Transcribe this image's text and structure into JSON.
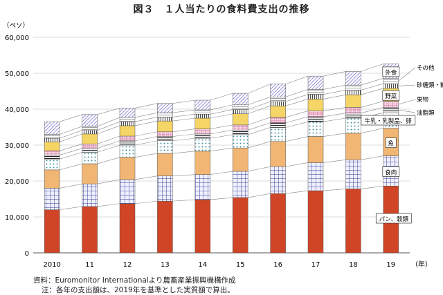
{
  "chart_data": {
    "type": "bar",
    "stacked": true,
    "title": "図３　１人当たりの食料費支出の推移",
    "unit_label": "（ペソ）",
    "x_unit_label": "（年）",
    "categories": [
      "2010",
      "11",
      "12",
      "13",
      "14",
      "15",
      "16",
      "17",
      "18",
      "19"
    ],
    "y_ticks": [
      "0",
      "10,000",
      "20,000",
      "30,000",
      "40,000",
      "50,000",
      "60,000"
    ],
    "ylim": [
      0,
      60000
    ],
    "grid": true,
    "series": [
      {
        "name": "パン、穀類",
        "color": "#cf4526",
        "pattern": "solid",
        "values": [
          12000,
          12900,
          13700,
          14400,
          14800,
          15400,
          16500,
          17300,
          17800,
          18600
        ]
      },
      {
        "name": "食肉",
        "color": "#5a5aa8",
        "pattern": "grid",
        "values": [
          6000,
          6300,
          6700,
          7000,
          7000,
          7300,
          7500,
          7800,
          8100,
          8400
        ]
      },
      {
        "name": "魚",
        "color": "#f1b673",
        "pattern": "solid",
        "values": [
          5100,
          5600,
          6200,
          6300,
          6500,
          6500,
          7000,
          7300,
          7400,
          7700
        ]
      },
      {
        "name": "牛乳・乳製品、卵",
        "color": "#5aa7b5",
        "pattern": "dots",
        "values": [
          3000,
          3200,
          3400,
          3500,
          3600,
          3700,
          3900,
          4100,
          4200,
          4300
        ]
      },
      {
        "name": "油脂類",
        "color": "#222222",
        "pattern": "hlines",
        "values": [
          1100,
          1100,
          1200,
          1200,
          1200,
          1300,
          1300,
          1400,
          1400,
          1500
        ]
      },
      {
        "name": "果物",
        "color": "#d97fa6",
        "pattern": "checker",
        "values": [
          1200,
          1200,
          1300,
          1300,
          1400,
          1400,
          1500,
          1600,
          1600,
          1700
        ]
      },
      {
        "name": "野菜",
        "color": "#f5d565",
        "pattern": "solid",
        "values": [
          2500,
          2800,
          2900,
          3000,
          3000,
          3100,
          3200,
          3300,
          3500,
          3600
        ]
      },
      {
        "name": "砂糖類・糖菓",
        "color": "#444444",
        "pattern": "vlines",
        "values": [
          1000,
          1000,
          1100,
          1100,
          1100,
          1200,
          1200,
          1300,
          1300,
          1300
        ]
      },
      {
        "name": "その他",
        "color": "#777777",
        "pattern": "hlines-light",
        "values": [
          1100,
          1100,
          1200,
          1200,
          1200,
          1300,
          1300,
          1400,
          1400,
          1500
        ]
      },
      {
        "name": "外食",
        "color": "#8e8ed6",
        "pattern": "diag",
        "values": [
          3500,
          3300,
          2600,
          2600,
          2700,
          3200,
          3600,
          3700,
          3800,
          4000
        ]
      }
    ],
    "source_note": "資料：Euromonitor Internationalより農畜産業振興機構作成",
    "footnote": "注：各年の支出額は、2019年を基準とした実質額で算出。"
  }
}
